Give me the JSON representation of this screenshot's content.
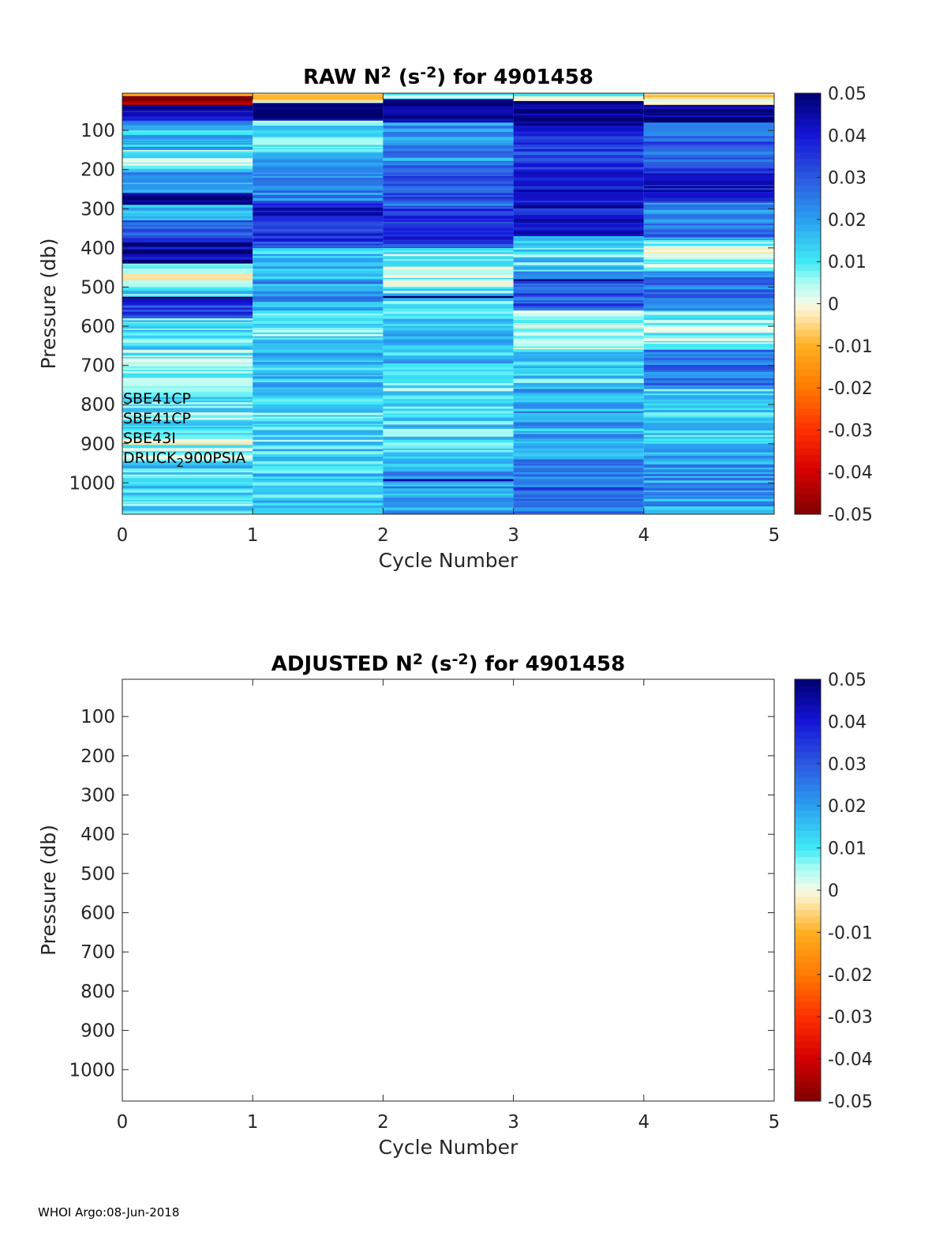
{
  "footer": "WHOI Argo:08-Jun-2018",
  "colormap": {
    "stops": [
      {
        "v": -0.05,
        "c": "#800000"
      },
      {
        "v": -0.04,
        "c": "#d40000"
      },
      {
        "v": -0.03,
        "c": "#ff3000"
      },
      {
        "v": -0.02,
        "c": "#ff7a00"
      },
      {
        "v": -0.01,
        "c": "#ffb020"
      },
      {
        "v": -0.003,
        "c": "#ffe8b0"
      },
      {
        "v": 0.0,
        "c": "#f6fbe8"
      },
      {
        "v": 0.005,
        "c": "#aafcf4"
      },
      {
        "v": 0.01,
        "c": "#3fe9f5"
      },
      {
        "v": 0.02,
        "c": "#2a9ff0"
      },
      {
        "v": 0.03,
        "c": "#2c57e0"
      },
      {
        "v": 0.04,
        "c": "#1515d8"
      },
      {
        "v": 0.05,
        "c": "#000070"
      }
    ]
  },
  "chart_data": [
    {
      "type": "heatmap",
      "title": "RAW N",
      "title_sup1": "2",
      "title_mid": " (s",
      "title_sup2": "-2",
      "title_end": ") for 4901458",
      "xlabel": "Cycle Number",
      "ylabel": "Pressure (db)",
      "xlim": [
        0,
        5
      ],
      "ylim": [
        1080,
        5
      ],
      "xticks": [
        "0",
        "1",
        "2",
        "3",
        "4",
        "5"
      ],
      "yticks": [
        "100",
        "200",
        "300",
        "400",
        "500",
        "600",
        "700",
        "800",
        "900",
        "1000"
      ],
      "clim": [
        -0.05,
        0.05
      ],
      "cticks": [
        "0.05",
        "0.04",
        "0.03",
        "0.02",
        "0.01",
        "0",
        "-0.01",
        "-0.02",
        "-0.03",
        "-0.04",
        "-0.05"
      ],
      "annotations": [
        {
          "text": "SBE41CP"
        },
        {
          "text": "SBE41CP"
        },
        {
          "text": "SBE43I"
        },
        {
          "text": "DRUCK",
          "sub": "2",
          "rest": "900PSIA"
        }
      ],
      "columns": [
        {
          "cycle": [
            0,
            1
          ],
          "bands": [
            {
              "p": [
                5,
                12
              ],
              "v": -0.01
            },
            {
              "p": [
                12,
                35
              ],
              "v": -0.05
            },
            {
              "p": [
                35,
                50
              ],
              "v": 0.05
            },
            {
              "p": [
                50,
                75
              ],
              "v": 0.04
            },
            {
              "p": [
                75,
                100
              ],
              "v": 0.025
            },
            {
              "p": [
                100,
                150
              ],
              "v": 0.015
            },
            {
              "p": [
                150,
                200
              ],
              "v": 0.008
            },
            {
              "p": [
                200,
                260
              ],
              "v": 0.02
            },
            {
              "p": [
                260,
                290
              ],
              "v": 0.045
            },
            {
              "p": [
                290,
                330
              ],
              "v": 0.02
            },
            {
              "p": [
                330,
                380
              ],
              "v": 0.03
            },
            {
              "p": [
                380,
                440
              ],
              "v": 0.045
            },
            {
              "p": [
                440,
                500
              ],
              "v": 0.003
            },
            {
              "p": [
                500,
                530
              ],
              "v": 0.012
            },
            {
              "p": [
                530,
                580
              ],
              "v": 0.035
            },
            {
              "p": [
                580,
                660
              ],
              "v": 0.012
            },
            {
              "p": [
                660,
                760
              ],
              "v": 0.006
            },
            {
              "p": [
                760,
                880
              ],
              "v": 0.01
            },
            {
              "p": [
                880,
                940
              ],
              "v": 0.004
            },
            {
              "p": [
                940,
                1080
              ],
              "v": 0.012
            }
          ]
        },
        {
          "cycle": [
            1,
            2
          ],
          "bands": [
            {
              "p": [
                5,
                30
              ],
              "v": -0.003
            },
            {
              "p": [
                30,
                75
              ],
              "v": 0.05
            },
            {
              "p": [
                75,
                160
              ],
              "v": 0.01
            },
            {
              "p": [
                160,
                280
              ],
              "v": 0.025
            },
            {
              "p": [
                280,
                330
              ],
              "v": 0.04
            },
            {
              "p": [
                330,
                400
              ],
              "v": 0.035
            },
            {
              "p": [
                400,
                480
              ],
              "v": 0.015
            },
            {
              "p": [
                480,
                560
              ],
              "v": 0.02
            },
            {
              "p": [
                560,
                640
              ],
              "v": 0.01
            },
            {
              "p": [
                640,
                760
              ],
              "v": 0.015
            },
            {
              "p": [
                760,
                900
              ],
              "v": 0.012
            },
            {
              "p": [
                900,
                1080
              ],
              "v": 0.014
            }
          ]
        },
        {
          "cycle": [
            2,
            3
          ],
          "bands": [
            {
              "p": [
                5,
                20
              ],
              "v": 0.008
            },
            {
              "p": [
                20,
                80
              ],
              "v": 0.05
            },
            {
              "p": [
                80,
                180
              ],
              "v": 0.022
            },
            {
              "p": [
                180,
                300
              ],
              "v": 0.03
            },
            {
              "p": [
                300,
                400
              ],
              "v": 0.035
            },
            {
              "p": [
                400,
                500
              ],
              "v": 0.006
            },
            {
              "p": [
                500,
                600
              ],
              "v": 0.012
            },
            {
              "p": [
                600,
                700
              ],
              "v": 0.016
            },
            {
              "p": [
                700,
                800
              ],
              "v": 0.01
            },
            {
              "p": [
                800,
                940
              ],
              "v": 0.012
            },
            {
              "p": [
                940,
                1080
              ],
              "v": 0.02
            }
          ]
        },
        {
          "cycle": [
            3,
            4
          ],
          "bands": [
            {
              "p": [
                5,
                25
              ],
              "v": 0.006
            },
            {
              "p": [
                25,
                90
              ],
              "v": 0.05
            },
            {
              "p": [
                90,
                200
              ],
              "v": 0.035
            },
            {
              "p": [
                200,
                370
              ],
              "v": 0.04
            },
            {
              "p": [
                370,
                460
              ],
              "v": 0.012
            },
            {
              "p": [
                460,
                560
              ],
              "v": 0.03
            },
            {
              "p": [
                560,
                660
              ],
              "v": 0.004
            },
            {
              "p": [
                660,
                760
              ],
              "v": 0.012
            },
            {
              "p": [
                760,
                940
              ],
              "v": 0.018
            },
            {
              "p": [
                940,
                1080
              ],
              "v": 0.028
            }
          ]
        },
        {
          "cycle": [
            4,
            5
          ],
          "bands": [
            {
              "p": [
                5,
                35
              ],
              "v": -0.002
            },
            {
              "p": [
                35,
                80
              ],
              "v": 0.05
            },
            {
              "p": [
                80,
                200
              ],
              "v": 0.03
            },
            {
              "p": [
                200,
                280
              ],
              "v": 0.04
            },
            {
              "p": [
                280,
                380
              ],
              "v": 0.025
            },
            {
              "p": [
                380,
                460
              ],
              "v": 0.005
            },
            {
              "p": [
                460,
                560
              ],
              "v": 0.025
            },
            {
              "p": [
                560,
                660
              ],
              "v": 0.006
            },
            {
              "p": [
                660,
                760
              ],
              "v": 0.025
            },
            {
              "p": [
                760,
                900
              ],
              "v": 0.012
            },
            {
              "p": [
                900,
                1080
              ],
              "v": 0.02
            }
          ]
        }
      ],
      "lines": [
        {
          "cycle": [
            0,
            1
          ],
          "p": [
            525,
            530
          ],
          "v": 0.05
        },
        {
          "cycle": [
            2,
            3
          ],
          "p": [
            523,
            528
          ],
          "v": 0.05
        },
        {
          "cycle": [
            3,
            4
          ],
          "p": [
            480,
            484
          ],
          "v": 0.05
        },
        {
          "cycle": [
            2,
            3
          ],
          "p": [
            990,
            996
          ],
          "v": 0.045
        },
        {
          "cycle": [
            0,
            1
          ],
          "p": [
            273,
            278
          ],
          "v": 0.05
        }
      ]
    },
    {
      "type": "heatmap",
      "title": "ADJUSTED N",
      "title_sup1": "2",
      "title_mid": " (s",
      "title_sup2": "-2",
      "title_end": ") for 4901458",
      "xlabel": "Cycle Number",
      "ylabel": "Pressure (db)",
      "xlim": [
        0,
        5
      ],
      "ylim": [
        1080,
        5
      ],
      "xticks": [
        "0",
        "1",
        "2",
        "3",
        "4",
        "5"
      ],
      "yticks": [
        "100",
        "200",
        "300",
        "400",
        "500",
        "600",
        "700",
        "800",
        "900",
        "1000"
      ],
      "clim": [
        -0.05,
        0.05
      ],
      "cticks": [
        "0.05",
        "0.04",
        "0.03",
        "0.02",
        "0.01",
        "0",
        "-0.01",
        "-0.02",
        "-0.03",
        "-0.04",
        "-0.05"
      ],
      "annotations": [],
      "columns": [],
      "lines": []
    }
  ]
}
